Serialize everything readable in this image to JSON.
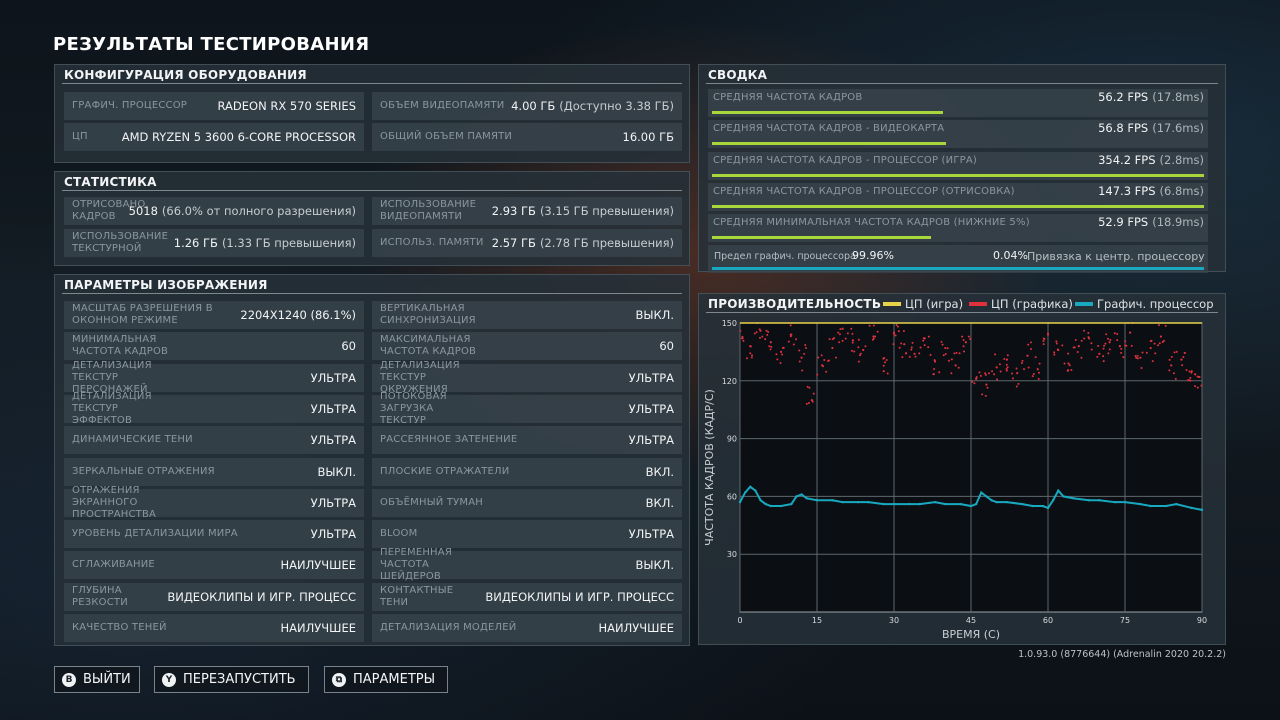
{
  "page": {
    "title": "РЕЗУЛЬТАТЫ ТЕСТИРОВАНИЯ",
    "version": "1.0.93.0 (8776644) (Adrenalin 2020 20.2.2)"
  },
  "hardware": {
    "title": "КОНФИГУРАЦИЯ ОБОРУДОВАНИЯ",
    "rows": [
      {
        "label": "ГРАФИЧ. ПРОЦЕССОР",
        "value": "RADEON RX 570 SERIES"
      },
      {
        "label": "ОБЪЕМ ВИДЕОПАМЯТИ",
        "value": "4.00 ГБ",
        "extra": "(Доступно 3.38 ГБ)"
      },
      {
        "label": "ЦП",
        "value": "AMD RYZEN 5 3600 6-CORE PROCESSOR"
      },
      {
        "label": "ОБЩИЙ ОБЪЕМ ПАМЯТИ",
        "value": "16.00 ГБ"
      }
    ]
  },
  "stats": {
    "title": "СТАТИСТИКА",
    "rows": [
      {
        "label": "ОТРИСОВАНО КАДРОВ",
        "value": "5018",
        "extra": "(66.0% от полного разрешения)"
      },
      {
        "label": "ИСПОЛЬЗОВАНИЕ ВИДЕОПАМЯТИ",
        "value": "2.93 ГБ",
        "extra": "(3.15 ГБ превышения)"
      },
      {
        "label": "ИСПОЛЬЗОВАНИЕ ТЕКСТУРНОЙ",
        "value": "1.26 ГБ",
        "extra": "(1.33 ГБ превышения)"
      },
      {
        "label": "ИСПОЛЬЗ. ПАМЯТИ",
        "value": "2.57 ГБ",
        "extra": "(2.78 ГБ превышения)"
      }
    ]
  },
  "image": {
    "title": "ПАРАМЕТРЫ ИЗОБРАЖЕНИЯ",
    "left": [
      {
        "label": "МАСШТАБ РАЗРЕШЕНИЯ В ОКОННОМ РЕЖИМЕ",
        "value": "2204X1240 (86.1%)"
      },
      {
        "label": "МИНИМАЛЬНАЯ ЧАСТОТА КАДРОВ",
        "value": "60"
      },
      {
        "label": "ДЕТАЛИЗАЦИЯ ТЕКСТУР ПЕРСОНАЖЕЙ",
        "value": "УЛЬТРА"
      },
      {
        "label": "ДЕТАЛИЗАЦИЯ ТЕКСТУР ЭФФЕКТОВ",
        "value": "УЛЬТРА"
      },
      {
        "label": "ДИНАМИЧЕСКИЕ ТЕНИ",
        "value": "УЛЬТРА"
      },
      {
        "label": "ЗЕРКАЛЬНЫЕ ОТРАЖЕНИЯ",
        "value": "ВЫКЛ."
      },
      {
        "label": "ОТРАЖЕНИЯ ЭКРАННОГО ПРОСТРАНСТВА",
        "value": "УЛЬТРА"
      },
      {
        "label": "УРОВЕНЬ ДЕТАЛИЗАЦИИ МИРА",
        "value": "УЛЬТРА"
      },
      {
        "label": "СГЛАЖИВАНИЕ",
        "value": "НАИЛУЧШЕЕ"
      },
      {
        "label": "ГЛУБИНА РЕЗКОСТИ",
        "value": "ВИДЕОКЛИПЫ И ИГР. ПРОЦЕСС"
      },
      {
        "label": "КАЧЕСТВО ТЕНЕЙ",
        "value": "НАИЛУЧШЕЕ"
      }
    ],
    "right": [
      {
        "label": "ВЕРТИКАЛЬНАЯ СИНХРОНИЗАЦИЯ",
        "value": "ВЫКЛ."
      },
      {
        "label": "МАКСИМАЛЬНАЯ ЧАСТОТА КАДРОВ",
        "value": "60"
      },
      {
        "label": "ДЕТАЛИЗАЦИЯ ТЕКСТУР ОКРУЖЕНИЯ",
        "value": "УЛЬТРА"
      },
      {
        "label": "ПОТОКОВАЯ ЗАГРУЗКА ТЕКСТУР",
        "value": "УЛЬТРА"
      },
      {
        "label": "РАССЕЯННОЕ ЗАТЕНЕНИЕ",
        "value": "УЛЬТРА"
      },
      {
        "label": "ПЛОСКИЕ ОТРАЖАТЕЛИ",
        "value": "ВКЛ."
      },
      {
        "label": "ОБЪЁМНЫЙ ТУМАН",
        "value": "ВКЛ."
      },
      {
        "label": "BLOOM",
        "value": "УЛЬТРА"
      },
      {
        "label": "ПЕРЕМЕННАЯ ЧАСТОТА ШЕЙДЕРОВ",
        "value": "ВЫКЛ."
      },
      {
        "label": "КОНТАКТНЫЕ ТЕНИ",
        "value": "ВИДЕОКЛИПЫ И ИГР. ПРОЦЕСС"
      },
      {
        "label": "ДЕТАЛИЗАЦИЯ МОДЕЛЕЙ",
        "value": "НАИЛУЧШЕЕ"
      }
    ]
  },
  "summary": {
    "title": "СВОДКА",
    "rows": [
      {
        "label": "СРЕДНЯЯ ЧАСТОТА КАДРОВ",
        "value": "56.2 FPS",
        "extra": "(17.8ms)",
        "fill": 0.47
      },
      {
        "label": "СРЕДНЯЯ ЧАСТОТА КАДРОВ - ВИДЕОКАРТА",
        "value": "56.8 FPS",
        "extra": "(17.6ms)",
        "fill": 0.475
      },
      {
        "label": "СРЕДНЯЯ ЧАСТОТА КАДРОВ - ПРОЦЕССОР (ИГРА)",
        "value": "354.2 FPS",
        "extra": "(2.8ms)",
        "fill": 1.0
      },
      {
        "label": "СРЕДНЯЯ ЧАСТОТА КАДРОВ - ПРОЦЕССОР (ОТРИСОВКА)",
        "value": "147.3 FPS",
        "extra": "(6.8ms)",
        "fill": 1.0
      },
      {
        "label": "СРЕДНЯЯ МИНИМАЛЬНАЯ ЧАСТОТА КАДРОВ (НИЖНИЕ 5%)",
        "value": "52.9 FPS",
        "extra": "(18.9ms)",
        "fill": 0.445
      }
    ],
    "limit": {
      "left_label": "Предел графич. процессора",
      "left_value": "99.96%",
      "right_value": "0.04%",
      "right_label": "Привязка к центр. процессору"
    }
  },
  "chart_data": {
    "type": "scatter",
    "title": "ПРОИЗВОДИТЕЛЬНОСТЬ",
    "xlabel": "ВРЕМЯ (С)",
    "ylabel": "ЧАСТОТА КАДРОВ (КАДР/С)",
    "xlim": [
      0,
      90
    ],
    "ylim": [
      0,
      150
    ],
    "xticks": [
      0,
      15,
      30,
      45,
      60,
      75,
      90
    ],
    "yticks": [
      30,
      60,
      90,
      120,
      150
    ],
    "legend_position": "top",
    "series": [
      {
        "name": "ЦП (игра)",
        "color": "#e8d24a",
        "x": [
          0,
          90
        ],
        "y": [
          150,
          150
        ]
      },
      {
        "name": "ЦП (графика)",
        "color": "#e0313d",
        "x": [
          0.5,
          2,
          4,
          6,
          8,
          10,
          12,
          14,
          16,
          18,
          20,
          22,
          24,
          26,
          28,
          30,
          32,
          34,
          36,
          38,
          40,
          42,
          44,
          46,
          48,
          50,
          52,
          54,
          56,
          58,
          60,
          62,
          64,
          66,
          68,
          70,
          72,
          74,
          76,
          78,
          80,
          82,
          84,
          86,
          88,
          89.5
        ],
        "y": [
          142,
          138,
          146,
          140,
          135,
          144,
          132,
          110,
          128,
          137,
          147,
          141,
          136,
          143,
          125,
          145,
          139,
          134,
          142,
          130,
          137,
          128,
          140,
          121,
          118,
          127,
          131,
          124,
          133,
          126,
          144,
          136,
          129,
          138,
          142,
          134,
          140,
          138,
          145,
          132,
          137,
          143,
          128,
          131,
          125,
          122
        ]
      },
      {
        "name": "Графич. процессор",
        "color": "#18a9c0",
        "x": [
          0,
          1,
          2,
          3,
          4,
          5,
          6,
          8,
          10,
          11,
          12,
          13,
          15,
          18,
          20,
          23,
          25,
          28,
          30,
          33,
          35,
          38,
          40,
          43,
          45,
          46,
          47,
          48,
          49,
          50,
          52,
          55,
          57,
          59,
          60,
          61,
          62,
          63,
          65,
          68,
          70,
          73,
          75,
          78,
          80,
          83,
          85,
          88,
          90
        ],
        "y": [
          57,
          62,
          65,
          63,
          58,
          56,
          55,
          55,
          56,
          60,
          61,
          59,
          58,
          58,
          57,
          57,
          57,
          56,
          56,
          56,
          56,
          57,
          56,
          56,
          55,
          56,
          62,
          60,
          58,
          57,
          57,
          56,
          55,
          55,
          54,
          58,
          63,
          60,
          59,
          58,
          58,
          57,
          57,
          56,
          55,
          55,
          56,
          54,
          53
        ]
      }
    ]
  },
  "buttons": [
    {
      "glyph": "B",
      "label": "ВЫЙТИ"
    },
    {
      "glyph": "Y",
      "label": "ПЕРЕЗАПУСТИТЬ"
    },
    {
      "glyph": "⧉",
      "label": "ПАРАМЕТРЫ"
    }
  ]
}
